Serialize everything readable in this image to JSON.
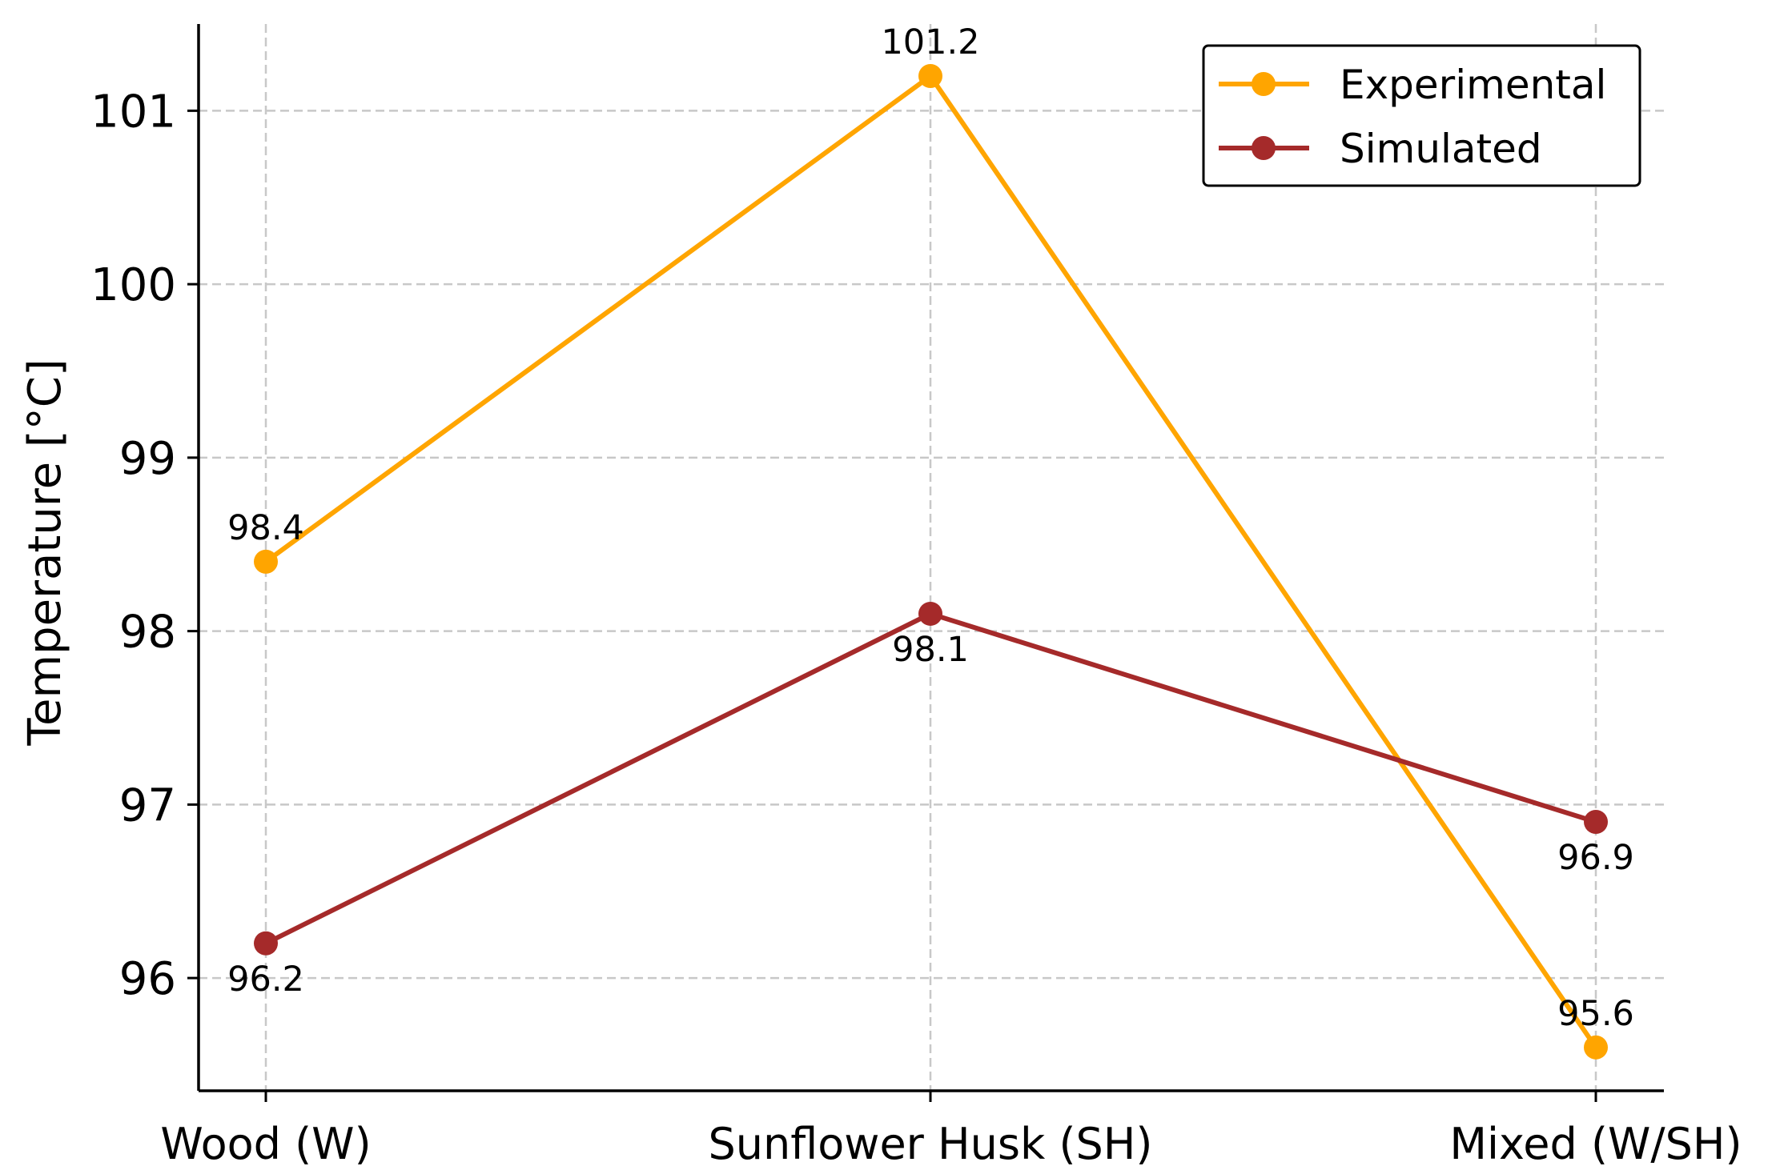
{
  "chart_data": {
    "type": "line",
    "title": "",
    "xlabel": "",
    "ylabel": "Temperature [°C]",
    "categories": [
      "Wood (W)",
      "Sunflower Husk (SH)",
      "Mixed (W/SH)"
    ],
    "ylim": [
      95.35,
      101.5
    ],
    "yticks": [
      96,
      97,
      98,
      99,
      100,
      101
    ],
    "grid": true,
    "legend_position": "top-right",
    "series": [
      {
        "name": "Experimental",
        "color": "#FFA500",
        "values": [
          98.4,
          101.2,
          95.6
        ],
        "labels": [
          "98.4",
          "101.2",
          "95.6"
        ],
        "label_placement": [
          "above",
          "above",
          "above"
        ]
      },
      {
        "name": "Simulated",
        "color": "#A52A2A",
        "values": [
          96.2,
          98.1,
          96.9
        ],
        "labels": [
          "96.2",
          "98.1",
          "96.9"
        ],
        "label_placement": [
          "below",
          "below",
          "below"
        ]
      }
    ]
  }
}
